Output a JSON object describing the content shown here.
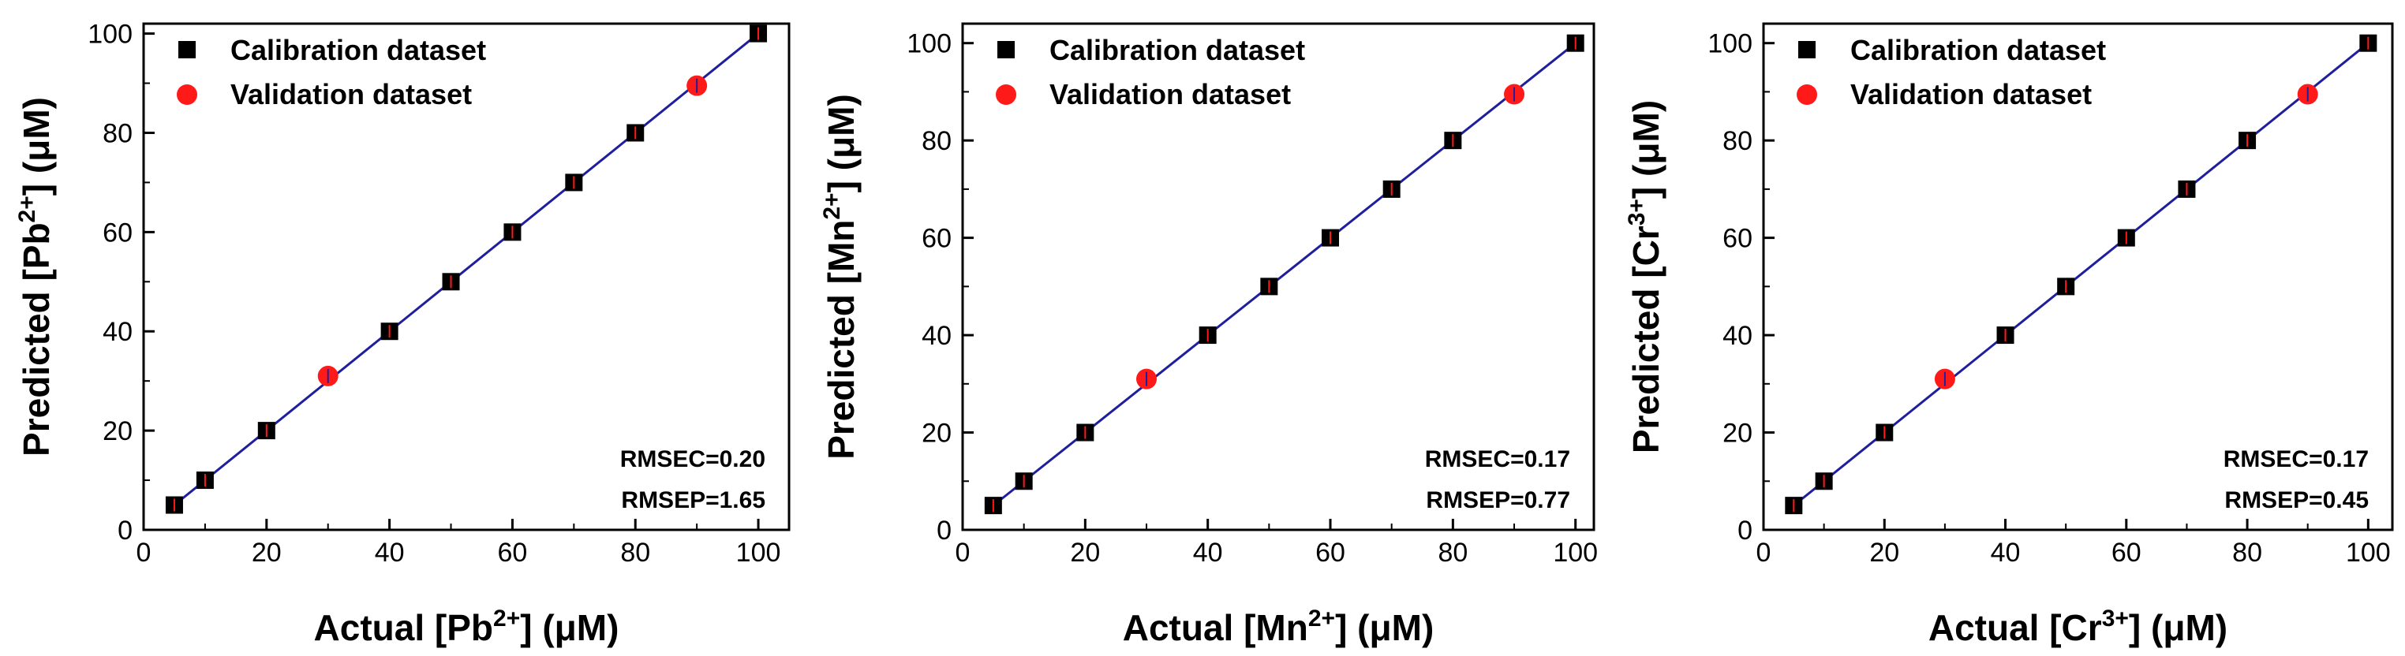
{
  "colors": {
    "calibration": "#000000",
    "validation": "#ff1a1a",
    "fit_line": "#1f1f9e",
    "axis": "#000000"
  },
  "chart_data": [
    {
      "type": "scatter",
      "ion": "Pb",
      "charge": "2+",
      "xlabel": {
        "pre": "Actual [",
        "ion": "Pb",
        "charge": "2+",
        "post": "] (μM)"
      },
      "ylabel": {
        "pre": "Predicted [",
        "ion": "Pb",
        "charge": "2+",
        "post": "] (μM)"
      },
      "xlim": [
        0,
        105
      ],
      "ylim": [
        0,
        102
      ],
      "xticks": [
        "0",
        "20",
        "40",
        "60",
        "80",
        "100"
      ],
      "yticks": [
        "0",
        "20",
        "40",
        "60",
        "80",
        "100"
      ],
      "legend": [
        "Calibration dataset",
        "Validation dataset"
      ],
      "rmsec": "RMSEC=0.20",
      "rmsep": "RMSEP=1.65",
      "series": [
        {
          "name": "Calibration dataset",
          "marker": "square",
          "x": [
            5,
            10,
            20,
            40,
            50,
            60,
            70,
            80,
            100
          ],
          "y": [
            5,
            10,
            20,
            40,
            50,
            60,
            70,
            80,
            100
          ]
        },
        {
          "name": "Validation dataset",
          "marker": "circle",
          "x": [
            30,
            90
          ],
          "y": [
            31,
            89.5
          ]
        }
      ],
      "fit_line": {
        "x": [
          5,
          100
        ],
        "y": [
          5,
          100
        ]
      }
    },
    {
      "type": "scatter",
      "ion": "Mn",
      "charge": "2+",
      "xlabel": {
        "pre": "Actual [",
        "ion": "Mn",
        "charge": "2+",
        "post": "] (μM)"
      },
      "ylabel": {
        "pre": "Predicted [",
        "ion": "Mn",
        "charge": "2+",
        "post": "] (μM)"
      },
      "xlim": [
        0,
        103
      ],
      "ylim": [
        0,
        104
      ],
      "xticks": [
        "0",
        "20",
        "40",
        "60",
        "80",
        "100"
      ],
      "yticks": [
        "0",
        "20",
        "40",
        "60",
        "80",
        "100"
      ],
      "legend": [
        "Calibration dataset",
        "Validation dataset"
      ],
      "rmsec": "RMSEC=0.17",
      "rmsep": "RMSEP=0.77",
      "series": [
        {
          "name": "Calibration dataset",
          "marker": "square",
          "x": [
            5,
            10,
            20,
            40,
            50,
            60,
            70,
            80,
            100
          ],
          "y": [
            5,
            10,
            20,
            40,
            50,
            60,
            70,
            80,
            100
          ]
        },
        {
          "name": "Validation dataset",
          "marker": "circle",
          "x": [
            30,
            90
          ],
          "y": [
            31,
            89.5
          ]
        }
      ],
      "fit_line": {
        "x": [
          5,
          100
        ],
        "y": [
          5,
          100
        ]
      }
    },
    {
      "type": "scatter",
      "ion": "Cr",
      "charge": "3+",
      "xlabel": {
        "pre": "Actual [",
        "ion": "Cr",
        "charge": "3+",
        "post": "] (μM)"
      },
      "ylabel": {
        "pre": "Predicted [",
        "ion": "Cr",
        "charge": "3+",
        "post": "] (μM)"
      },
      "xlim": [
        0,
        104
      ],
      "ylim": [
        0,
        104
      ],
      "xticks": [
        "0",
        "20",
        "40",
        "60",
        "80",
        "100"
      ],
      "yticks": [
        "0",
        "20",
        "40",
        "60",
        "80",
        "100"
      ],
      "legend": [
        "Calibration dataset",
        "Validation dataset"
      ],
      "rmsec": "RMSEC=0.17",
      "rmsep": "RMSEP=0.45",
      "series": [
        {
          "name": "Calibration dataset",
          "marker": "square",
          "x": [
            5,
            10,
            20,
            40,
            50,
            60,
            70,
            80,
            100
          ],
          "y": [
            5,
            10,
            20,
            40,
            50,
            60,
            70,
            80,
            100
          ]
        },
        {
          "name": "Validation dataset",
          "marker": "circle",
          "x": [
            30,
            90
          ],
          "y": [
            31,
            89.5
          ]
        }
      ],
      "fit_line": {
        "x": [
          5,
          100
        ],
        "y": [
          5,
          100
        ]
      }
    }
  ]
}
